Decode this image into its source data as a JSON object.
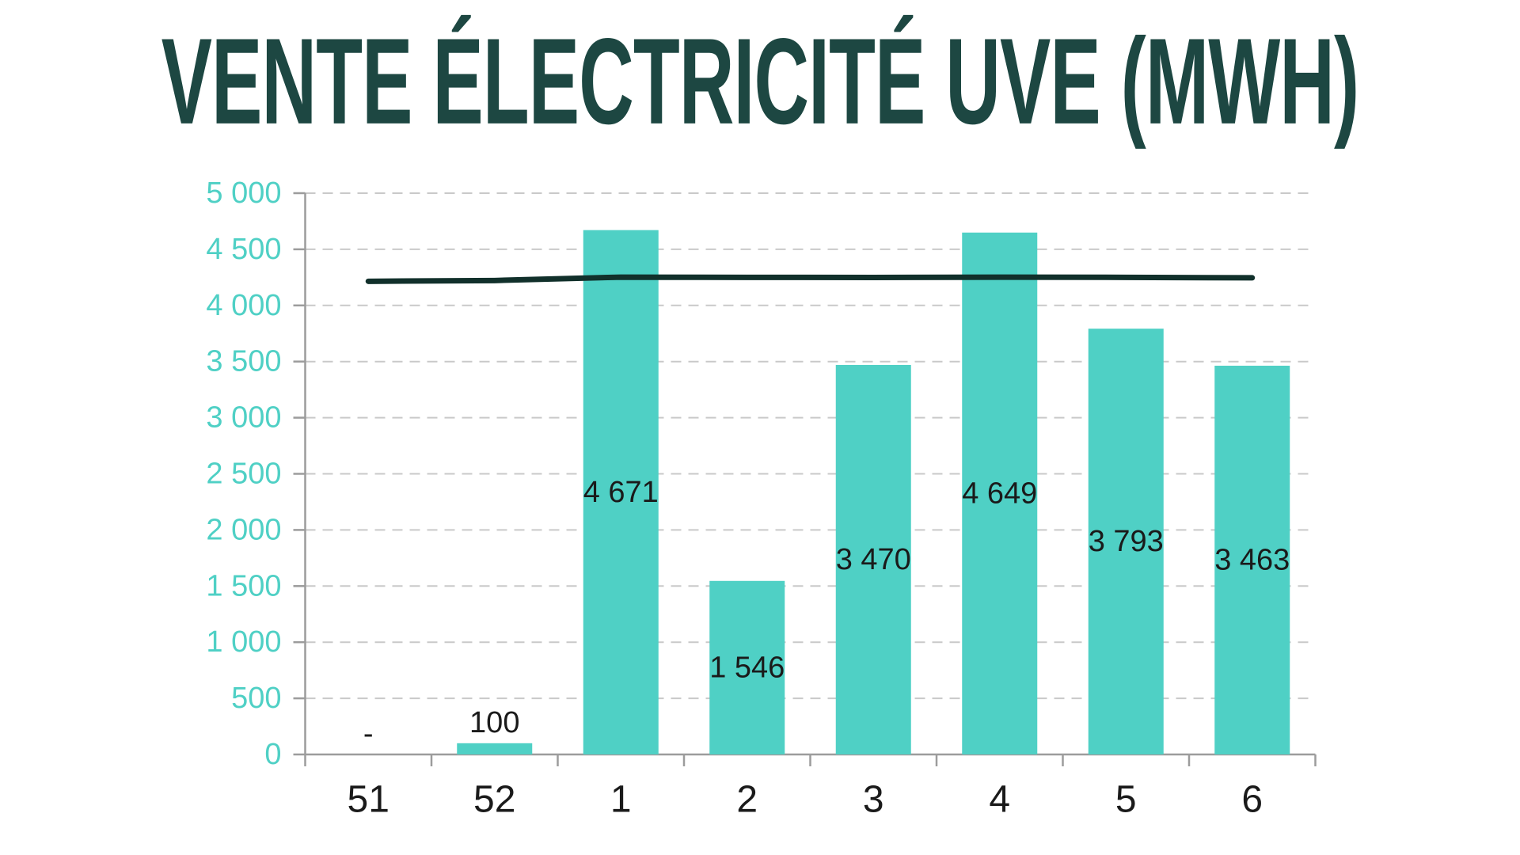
{
  "title": {
    "text": "VENTE ÉLECTRICITÉ UVE (MWH)",
    "color": "#1D4742"
  },
  "chart_data": {
    "type": "bar",
    "title": "VENTE ÉLECTRICITÉ UVE (MWH)",
    "categories": [
      "51",
      "52",
      "1",
      "2",
      "3",
      "4",
      "5",
      "6"
    ],
    "series": [
      {
        "name": "bar-series",
        "type": "bar",
        "values": [
          null,
          100,
          4671,
          1546,
          3470,
          4649,
          3793,
          3463
        ],
        "data_labels": [
          "-",
          "100",
          "4 671",
          "1 546",
          "3 470",
          "4 649",
          "3 793",
          "3 463"
        ],
        "color": "#4FD0C5"
      },
      {
        "name": "line-series",
        "type": "line",
        "values": [
          4215,
          4222,
          4252,
          4250,
          4249,
          4252,
          4250,
          4246
        ],
        "color": "#11302B"
      }
    ],
    "ylim": [
      0,
      5000
    ],
    "ytick_step": 500,
    "ytick_labels": [
      "0",
      "500",
      "1 000",
      "1 500",
      "2 000",
      "2 500",
      "3 000",
      "3 500",
      "4 000",
      "4 500",
      "5 000"
    ],
    "xlabel": "",
    "ylabel": "",
    "legend": null,
    "grid": {
      "horizontal": true,
      "style": "dashed",
      "color": "#C9C9C9"
    },
    "axis": {
      "line_color": "#9C9C9C",
      "y_tick_label_color": "#4FD0C5",
      "x_tick_label_color": "#1A1A1A",
      "data_label_color": "#1A1A1A"
    }
  }
}
